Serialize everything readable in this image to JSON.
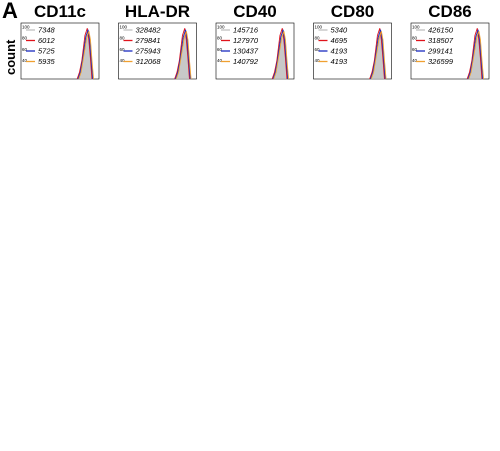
{
  "panel_letter": "A",
  "chart_data": {
    "type": "histogram-panel",
    "ylabel": "count",
    "y_ticks": [
      100,
      80,
      60,
      40
    ],
    "legend_colors": [
      "#999999",
      "#e0141c",
      "#1a2bbf",
      "#f0a030"
    ],
    "panels": [
      {
        "title": "CD11c",
        "mfi": [
          "7348",
          "6012",
          "5725",
          "5935"
        ]
      },
      {
        "title": "HLA-DR",
        "mfi": [
          "328482",
          "279841",
          "275943",
          "312068"
        ]
      },
      {
        "title": "CD40",
        "mfi": [
          "145716",
          "127970",
          "130437",
          "140792"
        ]
      },
      {
        "title": "CD80",
        "mfi": [
          "5340",
          "4695",
          "4193",
          "4193"
        ]
      },
      {
        "title": "CD86",
        "mfi": [
          "426150",
          "318507",
          "299141",
          "326599"
        ]
      }
    ]
  }
}
